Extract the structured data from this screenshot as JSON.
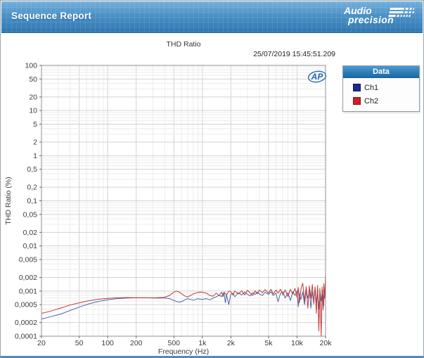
{
  "header": {
    "title": "Sequence Report",
    "brand_line1": "Audio",
    "brand_line2": "precision"
  },
  "report": {
    "chart_title": "THD Ratio",
    "timestamp": "25/07/2019 15:45:51.209",
    "watermark": "AP"
  },
  "legend": {
    "title": "Data",
    "items": [
      {
        "label": "Ch1",
        "swatch_color": "#1b2a8f"
      },
      {
        "label": "Ch2",
        "swatch_color": "#cc2127"
      }
    ]
  },
  "chart_data": {
    "type": "line",
    "title": "THD Ratio",
    "xlabel": "Frequency (Hz)",
    "ylabel": "THD Ratio (%)",
    "x_scale": "log",
    "y_scale": "log",
    "xlim": [
      20,
      20000
    ],
    "ylim": [
      0.0001,
      100
    ],
    "grid": true,
    "legend_position": "right",
    "x_ticks": {
      "values": [
        20,
        50,
        100,
        200,
        500,
        1000,
        2000,
        5000,
        10000,
        20000
      ],
      "labels": [
        "20",
        "50",
        "100",
        "200",
        "500",
        "1k",
        "2k",
        "5k",
        "10k",
        "20k"
      ]
    },
    "y_ticks": {
      "values": [
        100,
        50,
        20,
        10,
        5,
        2,
        1,
        0.5,
        0.2,
        0.1,
        0.05,
        0.02,
        0.01,
        0.005,
        0.002,
        0.001,
        0.0005,
        0.0002,
        0.0001
      ],
      "labels": [
        "100",
        "50",
        "20",
        "10",
        "5",
        "2",
        "1",
        "0,5",
        "0,2",
        "0,1",
        "0,05",
        "0,02",
        "0,01",
        "0,005",
        "0,002",
        "0,001",
        "0,0005",
        "0,0002",
        "0,0001"
      ]
    },
    "series": [
      {
        "name": "Ch1",
        "color": "#4668a8",
        "points": [
          [
            20,
            0.00024
          ],
          [
            25,
            0.00027
          ],
          [
            32,
            0.00031
          ],
          [
            40,
            0.00037
          ],
          [
            50,
            0.00044
          ],
          [
            63,
            0.00052
          ],
          [
            80,
            0.00059
          ],
          [
            100,
            0.00064
          ],
          [
            125,
            0.00068
          ],
          [
            160,
            0.0007
          ],
          [
            200,
            0.00071
          ],
          [
            250,
            0.00071
          ],
          [
            315,
            0.0007
          ],
          [
            400,
            0.0007
          ],
          [
            450,
            0.00068
          ],
          [
            500,
            0.00062
          ],
          [
            540,
            0.00058
          ],
          [
            580,
            0.00057
          ],
          [
            620,
            0.0006
          ],
          [
            660,
            0.00065
          ],
          [
            700,
            0.00068
          ],
          [
            750,
            0.00065
          ],
          [
            800,
            0.00063
          ],
          [
            850,
            0.00065
          ],
          [
            900,
            0.00068
          ],
          [
            950,
            0.00066
          ],
          [
            1000,
            0.00065
          ],
          [
            1100,
            0.00068
          ],
          [
            1200,
            0.00064
          ],
          [
            1300,
            0.0007
          ],
          [
            1400,
            0.00075
          ],
          [
            1500,
            0.0008
          ],
          [
            1600,
            0.00095
          ],
          [
            1650,
            0.00075
          ],
          [
            1700,
            0.0009
          ],
          [
            1750,
            0.00055
          ],
          [
            1800,
            0.00085
          ],
          [
            1900,
            0.0005
          ],
          [
            2000,
            0.00085
          ],
          [
            2100,
            0.0009
          ],
          [
            2200,
            0.00075
          ],
          [
            2400,
            0.00092
          ],
          [
            2600,
            0.00082
          ],
          [
            2800,
            0.00095
          ],
          [
            3000,
            0.00085
          ],
          [
            3200,
            0.00078
          ],
          [
            3400,
            0.00092
          ],
          [
            3600,
            0.00084
          ],
          [
            3800,
            0.00095
          ],
          [
            4000,
            0.00086
          ],
          [
            4300,
            0.0008
          ],
          [
            4600,
            0.00094
          ],
          [
            5000,
            0.00084
          ],
          [
            5300,
            0.00096
          ],
          [
            5600,
            0.0008
          ],
          [
            6000,
            0.0009
          ],
          [
            6300,
            0.00058
          ],
          [
            6700,
            0.0009
          ],
          [
            7100,
            0.00096
          ],
          [
            7500,
            0.0007
          ],
          [
            8000,
            0.00092
          ],
          [
            8500,
            0.00062
          ],
          [
            9000,
            0.00096
          ],
          [
            9500,
            0.0008
          ],
          [
            10000,
            0.001
          ],
          [
            10300,
            0.00045
          ],
          [
            10600,
            0.0009
          ],
          [
            11000,
            0.00065
          ],
          [
            11500,
            0.00095
          ],
          [
            12000,
            0.0005
          ],
          [
            12500,
            0.001
          ],
          [
            13000,
            0.0007
          ],
          [
            13500,
            0.00105
          ],
          [
            14000,
            0.00042
          ],
          [
            14500,
            0.00095
          ],
          [
            15000,
            0.0006
          ],
          [
            15500,
            0.0011
          ],
          [
            16000,
            0.00055
          ],
          [
            16500,
            0.001
          ],
          [
            17000,
            0.0004
          ],
          [
            17500,
            0.00095
          ],
          [
            18000,
            0.0006
          ],
          [
            18500,
            0.00105
          ],
          [
            19000,
            0.00045
          ],
          [
            19500,
            0.0009
          ],
          [
            20000,
            0.0008
          ]
        ]
      },
      {
        "name": "Ch2",
        "color": "#c03a36",
        "points": [
          [
            20,
            0.00032
          ],
          [
            25,
            0.00036
          ],
          [
            32,
            0.00042
          ],
          [
            40,
            0.00049
          ],
          [
            50,
            0.00055
          ],
          [
            63,
            0.00061
          ],
          [
            80,
            0.00066
          ],
          [
            100,
            0.00069
          ],
          [
            125,
            0.00071
          ],
          [
            160,
            0.00072
          ],
          [
            200,
            0.00071
          ],
          [
            250,
            0.00071
          ],
          [
            315,
            0.00071
          ],
          [
            400,
            0.00073
          ],
          [
            450,
            0.0008
          ],
          [
            500,
            0.00095
          ],
          [
            530,
            0.001
          ],
          [
            560,
            0.00097
          ],
          [
            600,
            0.00088
          ],
          [
            650,
            0.00078
          ],
          [
            700,
            0.00074
          ],
          [
            750,
            0.0008
          ],
          [
            800,
            0.00086
          ],
          [
            850,
            0.0009
          ],
          [
            900,
            0.00093
          ],
          [
            950,
            0.00095
          ],
          [
            1000,
            0.00094
          ],
          [
            1100,
            0.0009
          ],
          [
            1200,
            0.0008
          ],
          [
            1300,
            0.00077
          ],
          [
            1400,
            0.0009
          ],
          [
            1500,
            0.0008
          ],
          [
            1600,
            0.00076
          ],
          [
            1700,
            0.00095
          ],
          [
            1800,
            0.00082
          ],
          [
            1900,
            0.001
          ],
          [
            2000,
            0.00096
          ],
          [
            2100,
            0.00082
          ],
          [
            2200,
            0.001
          ],
          [
            2400,
            0.00086
          ],
          [
            2600,
            0.00102
          ],
          [
            2800,
            0.00082
          ],
          [
            3000,
            0.00105
          ],
          [
            3200,
            0.0009
          ],
          [
            3400,
            0.0008
          ],
          [
            3600,
            0.00102
          ],
          [
            3800,
            0.00086
          ],
          [
            4000,
            0.00106
          ],
          [
            4300,
            0.00092
          ],
          [
            4600,
            0.00108
          ],
          [
            5000,
            0.0009
          ],
          [
            5300,
            0.0011
          ],
          [
            5600,
            0.00086
          ],
          [
            6000,
            0.00106
          ],
          [
            6300,
            0.0009
          ],
          [
            6700,
            0.0011
          ],
          [
            7100,
            0.00082
          ],
          [
            7500,
            0.00106
          ],
          [
            8000,
            0.00076
          ],
          [
            8500,
            0.0011
          ],
          [
            9000,
            0.00086
          ],
          [
            9500,
            0.00115
          ],
          [
            10000,
            0.00072
          ],
          [
            10300,
            0.0012
          ],
          [
            10600,
            0.00055
          ],
          [
            11000,
            0.00112
          ],
          [
            11500,
            0.0015
          ],
          [
            12000,
            0.0006
          ],
          [
            12500,
            0.00125
          ],
          [
            13000,
            0.00042
          ],
          [
            13500,
            0.0013
          ],
          [
            14000,
            0.0007
          ],
          [
            14500,
            0.0014
          ],
          [
            15000,
            0.00052
          ],
          [
            15500,
            0.00125
          ],
          [
            16000,
            0.00032
          ],
          [
            16500,
            0.00135
          ],
          [
            17000,
            0.00013
          ],
          [
            17400,
            0.00115
          ],
          [
            18000,
            0.0001
          ],
          [
            18400,
            0.00125
          ],
          [
            18800,
            0.00038
          ],
          [
            19200,
            0.00145
          ],
          [
            19600,
            0.0007
          ],
          [
            20000,
            0.0025
          ]
        ]
      }
    ]
  }
}
